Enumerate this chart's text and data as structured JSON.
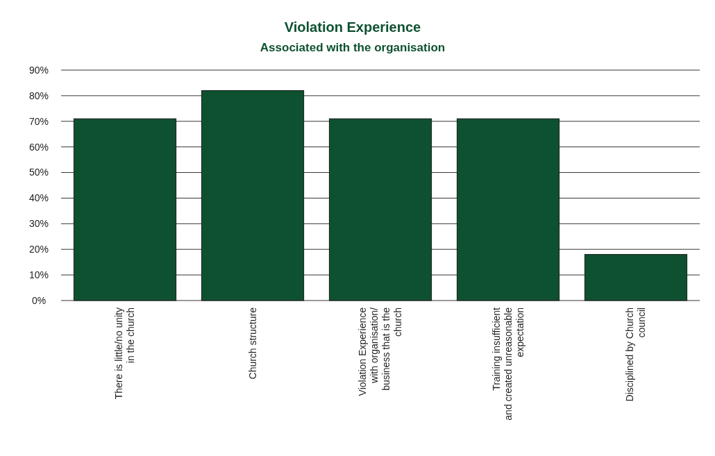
{
  "chart_data": {
    "type": "bar",
    "title": "Violation Experience",
    "subtitle": "Associated with the organisation",
    "categories": [
      "There is little/no unity in the church",
      "Church structure",
      "Violation Experience with organisation/ business that is the church",
      "Training insufficient and created unreasonable expectation",
      "Disciplined by Church council"
    ],
    "values": [
      71,
      82,
      71,
      71,
      18
    ],
    "color": "#0e5130",
    "ylim": [
      0,
      90
    ],
    "yticks": [
      {
        "value": 0,
        "label": "0%"
      },
      {
        "value": 10,
        "label": "10%"
      },
      {
        "value": 20,
        "label": "20%"
      },
      {
        "value": 30,
        "label": "30%"
      },
      {
        "value": 40,
        "label": "40%"
      },
      {
        "value": 50,
        "label": "50%"
      },
      {
        "value": 60,
        "label": "60%"
      },
      {
        "value": 70,
        "label": "70%"
      },
      {
        "value": 80,
        "label": "80%"
      },
      {
        "value": 90,
        "label": "90%"
      }
    ],
    "grid": "y"
  }
}
